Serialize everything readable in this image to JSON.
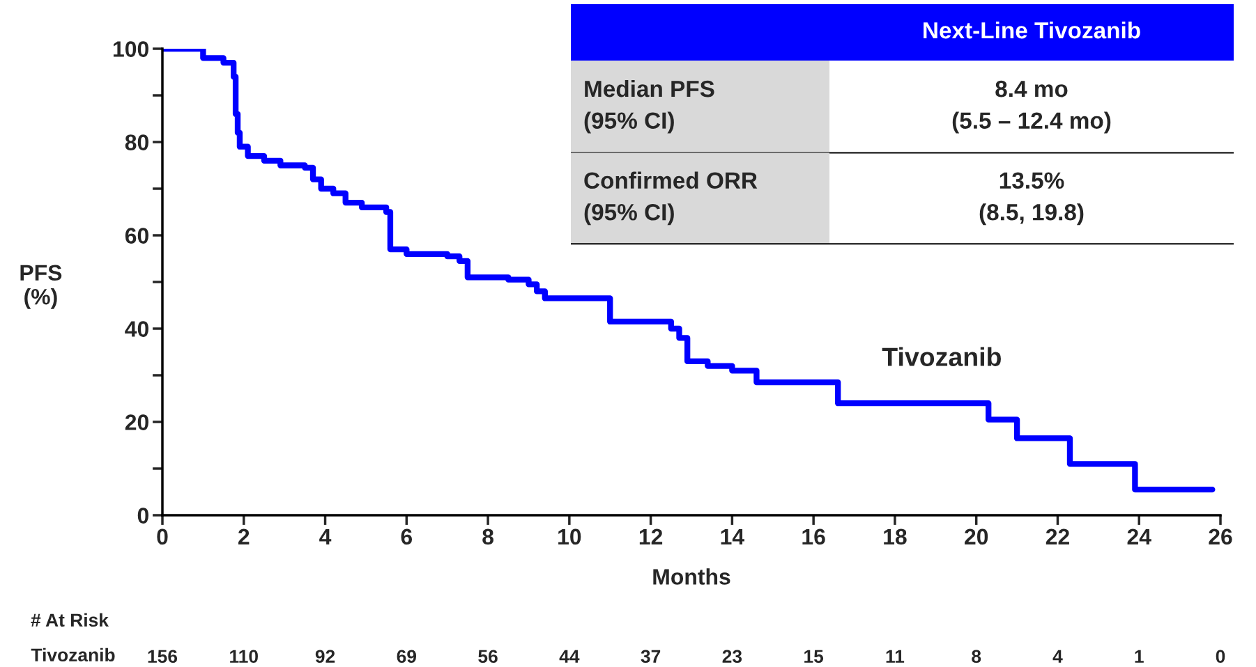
{
  "chart_data": [
    {
      "type": "step",
      "xlabel": "Months",
      "ylabel": "PFS\n(%)",
      "series": [
        {
          "name": "Tivozanib",
          "color": "#0000ff",
          "x": [
            0,
            0.9,
            1.0,
            1.5,
            1.75,
            1.8,
            1.85,
            1.9,
            2.1,
            2.5,
            2.9,
            3.5,
            3.7,
            3.9,
            4.2,
            4.5,
            4.9,
            5.4,
            5.5,
            5.6,
            6.0,
            7.0,
            7.3,
            7.5,
            8.5,
            9.0,
            9.2,
            9.4,
            11.0,
            12.3,
            12.5,
            12.7,
            12.9,
            13.4,
            14.0,
            14.6,
            16.5,
            16.6,
            20.3,
            21.0,
            22.3,
            23.9,
            25.8
          ],
          "values": [
            100,
            100,
            98,
            97,
            94,
            86,
            82,
            79,
            77,
            76,
            75,
            74.5,
            72,
            70,
            69,
            67,
            66,
            66,
            65,
            57,
            56,
            55.5,
            54.5,
            51,
            50.5,
            49.5,
            48,
            46.5,
            41.5,
            41.5,
            40,
            38,
            33,
            32,
            31,
            28.5,
            28.5,
            24,
            20.5,
            16.5,
            11,
            5.5,
            5.5
          ]
        }
      ],
      "xlim": [
        0,
        26
      ],
      "xticks": [
        0,
        2,
        4,
        6,
        8,
        10,
        12,
        14,
        16,
        18,
        20,
        22,
        24,
        26
      ],
      "ylim": [
        0,
        100
      ],
      "yticks": [
        0,
        {
          "value": 10,
          "label": null
        },
        20,
        {
          "value": 30,
          "label": null
        },
        40,
        {
          "value": 50,
          "label": null
        },
        60,
        {
          "value": 70,
          "label": null
        },
        80,
        {
          "value": 90,
          "label": null
        },
        100
      ],
      "grid": false,
      "legend": false,
      "line_style": "solid",
      "marker": "none",
      "annotations": [
        "# At Risk",
        "Tivozanib",
        "156",
        "110",
        "92",
        "69",
        "56",
        "44",
        "37",
        "23",
        "15",
        "11",
        "8",
        "4",
        "1",
        "0"
      ]
    },
    {
      "type": "other",
      "title": "Next-Line Tivozanib",
      "color": "#0000ff",
      "categories": [
        "Median PFS\n(95% CI)",
        "Confirmed ORR\n(95% CI)"
      ],
      "value_labels": [
        "8.4 mo\n(5.5 – 12.4 mo)",
        "13.5%\n(8.5, 19.8)"
      ]
    }
  ]
}
